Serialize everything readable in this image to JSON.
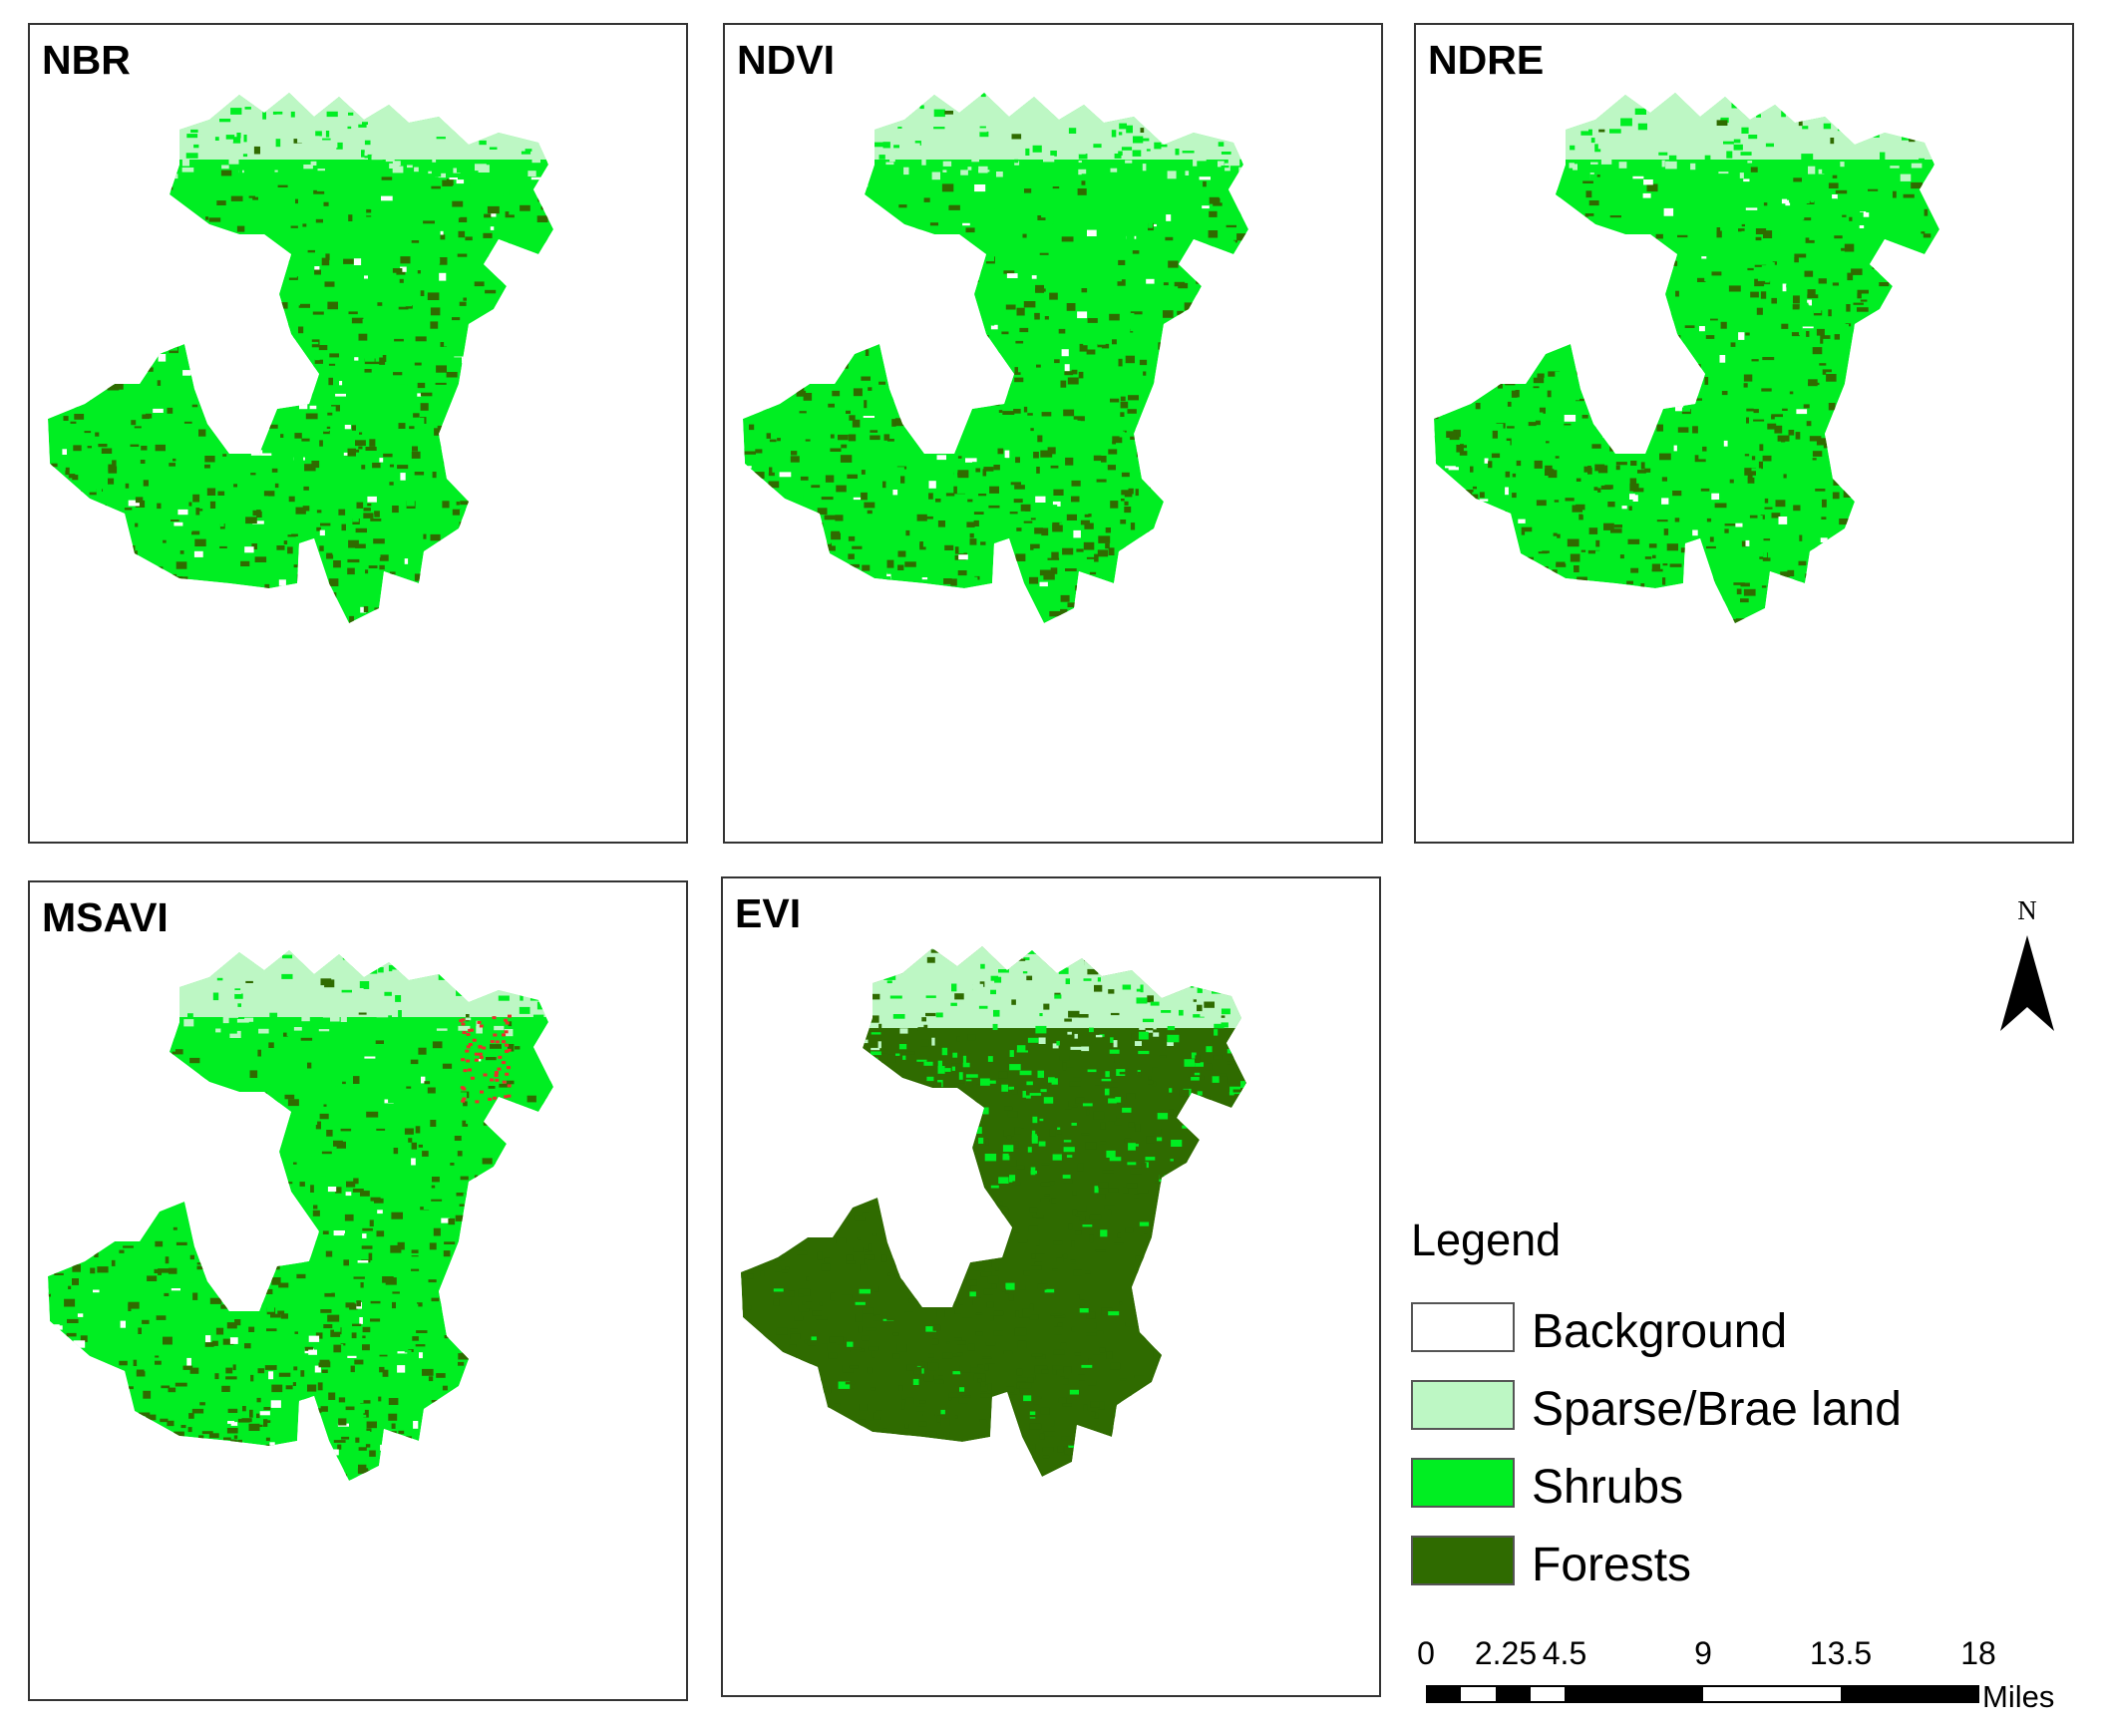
{
  "panels": [
    {
      "id": "nbr",
      "label": "NBR"
    },
    {
      "id": "ndvi",
      "label": "NDVI"
    },
    {
      "id": "ndre",
      "label": "NDRE"
    },
    {
      "id": "msavi",
      "label": "MSAVI"
    },
    {
      "id": "evi",
      "label": "EVI"
    }
  ],
  "north_arrow": {
    "letter": "N"
  },
  "legend": {
    "title": "Legend",
    "items": [
      {
        "label": "Background",
        "color": "#ffffff"
      },
      {
        "label": "Sparse/Brae land",
        "color": "#bdf7c4"
      },
      {
        "label": "Shrubs",
        "color": "#00ee22"
      },
      {
        "label": "Forests",
        "color": "#2f6b00"
      }
    ]
  },
  "scale_bar": {
    "ticks": [
      "0",
      "2.25",
      "4.5",
      "9",
      "13.5",
      "18"
    ],
    "units": "Miles"
  }
}
